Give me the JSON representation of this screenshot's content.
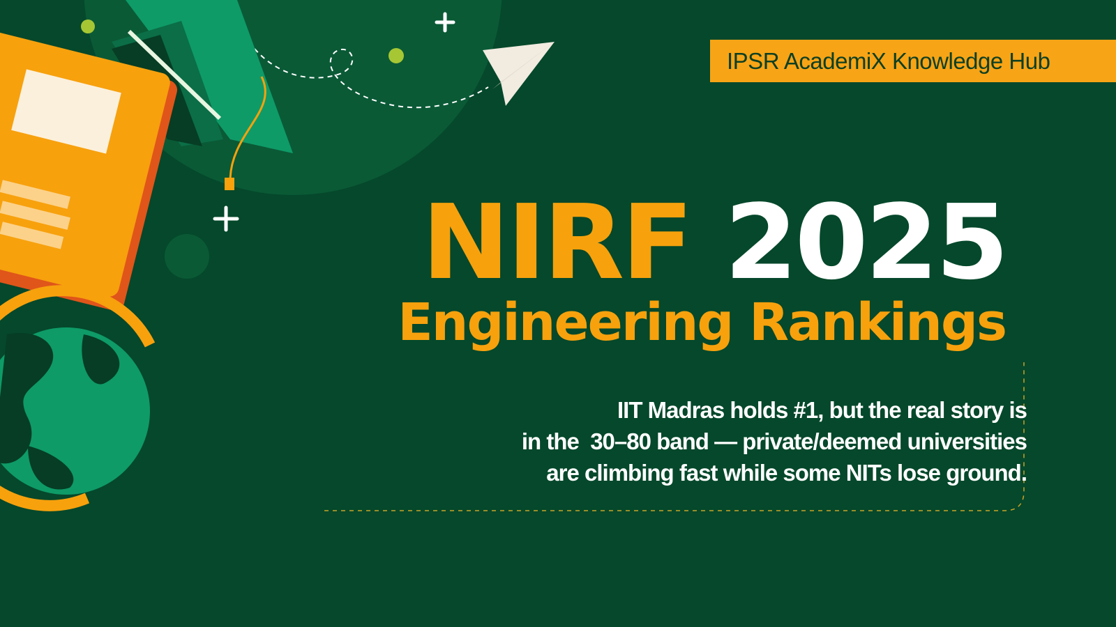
{
  "badge": {
    "label": "IPSR AcademiX Knowledge Hub"
  },
  "title": {
    "part1": "NIRF",
    "part2": "2025"
  },
  "subtitle": "Engineering Rankings",
  "body": {
    "lines": [
      "IIT Madras holds #1, but the real story is",
      "in the  30–80 band — private/deemed universities",
      "are climbing fast while some NITs lose ground."
    ]
  },
  "colors": {
    "background": "#05482b",
    "accent": "#f7a10d",
    "text": "#ffffff"
  }
}
